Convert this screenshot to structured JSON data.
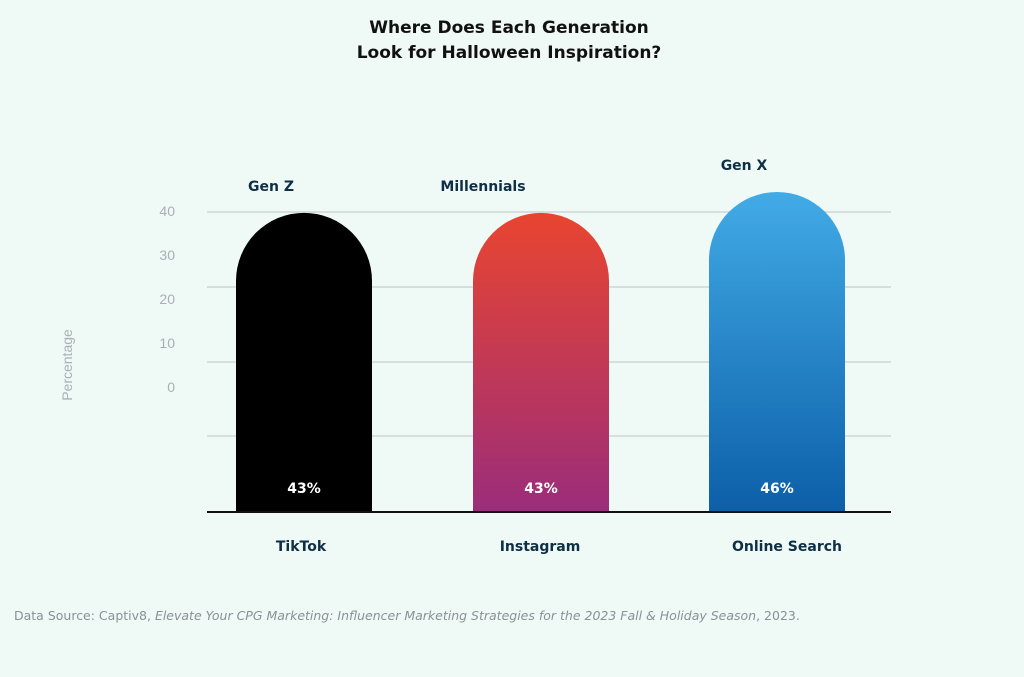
{
  "chart_data": {
    "type": "bar",
    "title": [
      "Where Does Each Generation",
      "Look for Halloween Inspiration?"
    ],
    "ylabel": "Percentage",
    "yticks": [
      40,
      30,
      20,
      10,
      0
    ],
    "categories": [
      "TikTok",
      "Instagram",
      "Online Search"
    ],
    "values": [
      43,
      43,
      46
    ],
    "value_labels": [
      "43%",
      "43%",
      "46%"
    ],
    "generations": [
      "Gen Z",
      "Millennials",
      "Gen X"
    ],
    "colors": [
      {
        "top": "#000000",
        "bottom": "#000000"
      },
      {
        "top": "#e94530",
        "bottom": "#9b2d7a"
      },
      {
        "top": "#42abe6",
        "bottom": "#0c5fa8"
      }
    ],
    "grid": true
  },
  "source": {
    "prefix": "Data Source: Captiv8, ",
    "title": "Elevate Your CPG Marketing: Influencer Marketing Strategies for the 2023 Fall & Holiday Season",
    "suffix": ", 2023."
  }
}
